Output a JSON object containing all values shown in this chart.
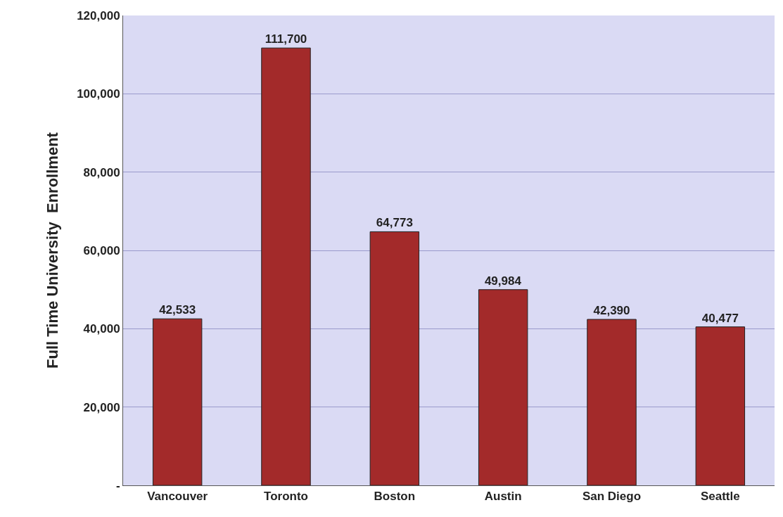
{
  "chart_data": {
    "type": "bar",
    "ylabel": "Full Time University  Enrollment",
    "categories": [
      "Vancouver",
      "Toronto",
      "Boston",
      "Austin",
      "San Diego",
      "Seattle"
    ],
    "values": [
      42533,
      111700,
      64773,
      49984,
      42390,
      40477
    ],
    "value_labels": [
      "42,533",
      "111,700",
      "64,773",
      "49,984",
      "42,390",
      "40,477"
    ],
    "color": "#a32a2a",
    "ylim": [
      0,
      120000
    ],
    "yticks": [
      {
        "value": 0,
        "label": "-"
      },
      {
        "value": 20000,
        "label": "20,000"
      },
      {
        "value": 40000,
        "label": "40,000"
      },
      {
        "value": 60000,
        "label": "60,000"
      },
      {
        "value": 80000,
        "label": "80,000"
      },
      {
        "value": 100000,
        "label": "100,000"
      },
      {
        "value": 120000,
        "label": "120,000"
      }
    ],
    "grid": "y"
  }
}
